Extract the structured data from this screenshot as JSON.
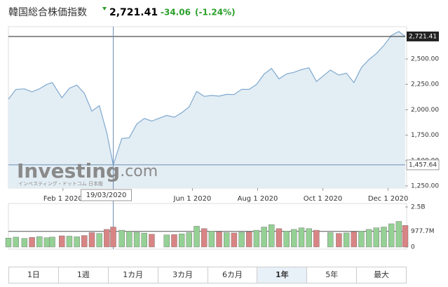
{
  "header": {
    "title": "韓国総合株価指数",
    "price": "2,721.41",
    "change": "-34.06",
    "change_pct": "(-1.24%)"
  },
  "logo": {
    "name": "Investing",
    "suffix": ".com",
    "subtitle": "インベスティング・ドットコム 日本版"
  },
  "chart_data": {
    "type": "area",
    "color": "#7fa9cf",
    "fill": "#e3edf4",
    "x": [
      "2019-12-12",
      "2019-12-19",
      "2019-12-27",
      "2020-01-03",
      "2020-01-10",
      "2020-01-17",
      "2020-01-22",
      "2020-01-31",
      "2020-02-07",
      "2020-02-14",
      "2020-02-21",
      "2020-02-28",
      "2020-03-06",
      "2020-03-13",
      "2020-03-19",
      "2020-03-27",
      "2020-04-03",
      "2020-04-10",
      "2020-04-17",
      "2020-04-24",
      "2020-05-08",
      "2020-05-15",
      "2020-05-22",
      "2020-05-29",
      "2020-06-05",
      "2020-06-12",
      "2020-06-19",
      "2020-06-26",
      "2020-07-03",
      "2020-07-10",
      "2020-07-17",
      "2020-07-24",
      "2020-07-31",
      "2020-08-07",
      "2020-08-14",
      "2020-08-21",
      "2020-08-28",
      "2020-09-04",
      "2020-09-11",
      "2020-09-18",
      "2020-09-25",
      "2020-10-08",
      "2020-10-16",
      "2020-10-23",
      "2020-10-30",
      "2020-11-06",
      "2020-11-13",
      "2020-11-20",
      "2020-11-27",
      "2020-12-04",
      "2020-12-11",
      "2020-12-17"
    ],
    "values": [
      2105,
      2200,
      2205,
      2176,
      2206,
      2250,
      2267,
      2119,
      2212,
      2243,
      2162,
      1987,
      2040,
      1771,
      1457.64,
      1717,
      1725,
      1860,
      1914,
      1889,
      1945,
      1927,
      1970,
      2029,
      2181,
      2132,
      2141,
      2134,
      2152,
      2150,
      2201,
      2200,
      2249,
      2351,
      2407,
      2304,
      2353,
      2368,
      2396,
      2412,
      2278,
      2391,
      2341,
      2360,
      2267,
      2416,
      2493,
      2553,
      2633,
      2731,
      2770,
      2721.41
    ],
    "xlim": [
      "2019-12-12",
      "2020-12-17"
    ],
    "xticks": [
      {
        "value": "2020-02-01",
        "label": "Feb 1 2020"
      },
      {
        "value": "2020-06-01",
        "label": "Jun 1 2020"
      },
      {
        "value": "2020-08-01",
        "label": "Aug 1 2020"
      },
      {
        "value": "2020-10-01",
        "label": "Oct 1 2020"
      },
      {
        "value": "2020-12-01",
        "label": "Dec 1 2020"
      }
    ],
    "ylim": [
      1229,
      2804
    ],
    "yticks": [
      {
        "value": 1250,
        "label": "1,250.00"
      },
      {
        "value": 1500,
        "label": "1,500.00"
      },
      {
        "value": 1750,
        "label": "1,750.00"
      },
      {
        "value": 2000,
        "label": "2,000.00"
      },
      {
        "value": 2250,
        "label": "2,250.00"
      },
      {
        "value": 2500,
        "label": "2,500.00"
      }
    ],
    "last": {
      "value": 2721.41,
      "label": "2,721.41"
    },
    "crosshair": {
      "x": "2020-03-19",
      "x_label": "19/03/2020",
      "value": 1457.64,
      "label": "1,457.64"
    },
    "volume": {
      "values": [
        560000000,
        620000000,
        540000000,
        600000000,
        650000000,
        580000000,
        620000000,
        700000000,
        680000000,
        640000000,
        720000000,
        900000000,
        850000000,
        1100000000,
        1250000000,
        1050000000,
        980000000,
        920000000,
        870000000,
        800000000,
        760000000,
        780000000,
        820000000,
        900000000,
        1300000000,
        1150000000,
        1000000000,
        950000000,
        900000000,
        880000000,
        920000000,
        950000000,
        1050000000,
        1250000000,
        1400000000,
        1150000000,
        1000000000,
        1100000000,
        1200000000,
        1150000000,
        1050000000,
        900000000,
        850000000,
        880000000,
        950000000,
        1000000000,
        1100000000,
        1200000000,
        1250000000,
        1450000000,
        1600000000,
        1350000000
      ],
      "ylim": [
        0,
        2500000000
      ],
      "yticks": [
        0,
        {
          "value": 977700000,
          "label": "977.7M"
        },
        {
          "value": 2500000000,
          "label": "2.5B"
        }
      ],
      "up_color": "#95d095",
      "down_color": "#d98484"
    }
  },
  "ranges": {
    "items": [
      "1日",
      "1週",
      "1カ月",
      "3カ月",
      "6カ月",
      "1年",
      "5年",
      "最大"
    ],
    "active": 5
  }
}
